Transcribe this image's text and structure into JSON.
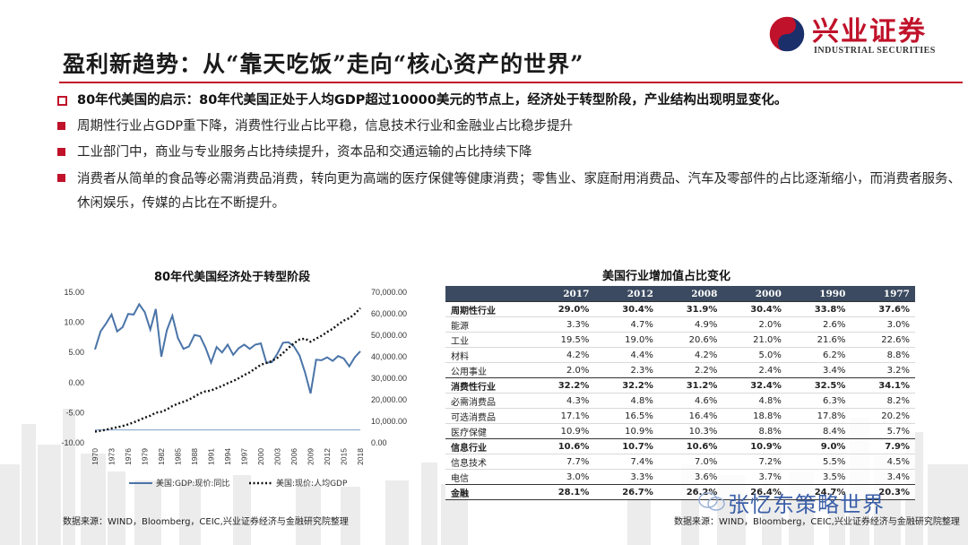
{
  "header": {
    "title": "盈利新趋势：从“靠天吃饭”走向“核心资产的世界”",
    "logo_cn": "兴业证券",
    "logo_en": "INDUSTRIAL SECURITIES"
  },
  "bullets": [
    "80年代美国的启示：80年代美国正处于人均GDP超过10000美元的节点上，经济处于转型阶段，产业结构出现明显变化。",
    "周期性行业占GDP重下降，消费性行业占比平稳，信息技术行业和金融业占比稳步提升",
    "工业部门中，商业与专业服务占比持续提升，资本品和交通运输的占比持续下降",
    "消费者从简单的食品等必需消费品消费，转向更为高端的医疗保健等健康消费；零售业、家庭耐用消费品、汽车及零部件的占比逐渐缩小，而消费者服务、休闲娱乐，传媒的占比在不断提升。"
  ],
  "colors": {
    "accent": "#c0122a",
    "series_gdp": "#4a74a8",
    "series_pc": "#111111",
    "table_header": "#3b4a60"
  },
  "chart_data": [
    {
      "type": "line",
      "title": "80年代美国经济处于转型阶段",
      "x": [
        1970,
        1971,
        1972,
        1973,
        1974,
        1975,
        1976,
        1977,
        1978,
        1979,
        1980,
        1981,
        1982,
        1983,
        1984,
        1985,
        1986,
        1987,
        1988,
        1989,
        1990,
        1991,
        1992,
        1993,
        1994,
        1995,
        1996,
        1997,
        1998,
        1999,
        2000,
        2001,
        2002,
        2003,
        2004,
        2005,
        2006,
        2007,
        2008,
        2009,
        2010,
        2011,
        2012,
        2013,
        2014,
        2015,
        2016,
        2017,
        2018
      ],
      "x_tick_labels": [
        "1970",
        "1973",
        "1976",
        "1979",
        "1982",
        "1985",
        "1988",
        "1991",
        "1994",
        "1997",
        "2000",
        "2003",
        "2006",
        "2009",
        "2012",
        "2015",
        "2018"
      ],
      "y_left_ticks": [
        "15.00",
        "10.00",
        "5.00",
        "0.00",
        "-5.00",
        "-10.00"
      ],
      "y_right_ticks": [
        "70,000.00",
        "60,000.00",
        "50,000.00",
        "40,000.00",
        "30,000.00",
        "20,000.00",
        "10,000.00",
        "0.00"
      ],
      "ylim_left": [
        -10,
        15
      ],
      "ylim_right": [
        0,
        70000
      ],
      "baseline_right": 6000,
      "series": [
        {
          "name": "美国:GDP:现价:同比",
          "axis": "left",
          "values": [
            5.5,
            8.5,
            9.8,
            11.3,
            8.5,
            9.2,
            11.4,
            11.3,
            13.0,
            11.7,
            8.8,
            12.2,
            4.3,
            8.7,
            11.1,
            7.4,
            5.6,
            6.0,
            7.9,
            7.7,
            5.8,
            3.3,
            5.9,
            5.0,
            6.3,
            4.6,
            5.7,
            6.3,
            5.6,
            6.3,
            6.5,
            3.3,
            3.4,
            4.8,
            6.6,
            6.7,
            6.0,
            4.5,
            1.7,
            -1.8,
            3.8,
            3.7,
            4.2,
            3.6,
            4.4,
            4.0,
            2.7,
            4.2,
            5.2
          ]
        },
        {
          "name": "美国:现价:人均GDP",
          "axis": "right",
          "values": [
            5200,
            5600,
            6100,
            6700,
            7200,
            7800,
            8600,
            9500,
            10600,
            11700,
            12600,
            14000,
            14400,
            15500,
            17100,
            18200,
            19100,
            20100,
            21500,
            23000,
            23900,
            24300,
            25400,
            26400,
            27700,
            28700,
            30000,
            31500,
            32800,
            34500,
            36300,
            37100,
            38000,
            39500,
            41700,
            44100,
            46300,
            48000,
            48400,
            47000,
            48400,
            49800,
            51500,
            53000,
            55000,
            56800,
            57900,
            59900,
            62600
          ]
        }
      ]
    },
    {
      "type": "table",
      "title": "美国行业增加值占比变化",
      "columns": [
        "",
        "2017",
        "2012",
        "2008",
        "2000",
        "1990",
        "1977"
      ],
      "rows": [
        {
          "label": "周期性行业",
          "group": true,
          "values": [
            "29.0%",
            "30.4%",
            "31.9%",
            "30.4%",
            "33.8%",
            "37.6%"
          ]
        },
        {
          "label": "能源",
          "group": false,
          "values": [
            "3.3%",
            "4.7%",
            "4.9%",
            "2.0%",
            "2.6%",
            "3.0%"
          ]
        },
        {
          "label": "工业",
          "group": false,
          "values": [
            "19.5%",
            "19.0%",
            "20.6%",
            "21.0%",
            "21.6%",
            "22.6%"
          ]
        },
        {
          "label": "材料",
          "group": false,
          "values": [
            "4.2%",
            "4.4%",
            "4.2%",
            "5.0%",
            "6.2%",
            "8.8%"
          ]
        },
        {
          "label": "公用事业",
          "group": false,
          "values": [
            "2.0%",
            "2.3%",
            "2.2%",
            "2.4%",
            "3.4%",
            "3.2%"
          ]
        },
        {
          "label": "消费性行业",
          "group": true,
          "values": [
            "32.2%",
            "32.2%",
            "31.2%",
            "32.4%",
            "32.5%",
            "34.1%"
          ]
        },
        {
          "label": "必需消费品",
          "group": false,
          "values": [
            "4.3%",
            "4.8%",
            "4.6%",
            "4.8%",
            "6.3%",
            "8.2%"
          ]
        },
        {
          "label": "可选消费品",
          "group": false,
          "values": [
            "17.1%",
            "16.5%",
            "16.4%",
            "18.8%",
            "17.8%",
            "20.2%"
          ]
        },
        {
          "label": "医疗保健",
          "group": false,
          "values": [
            "10.9%",
            "10.9%",
            "10.3%",
            "8.8%",
            "8.4%",
            "5.7%"
          ]
        },
        {
          "label": "信息行业",
          "group": true,
          "values": [
            "10.6%",
            "10.7%",
            "10.6%",
            "10.9%",
            "9.0%",
            "7.9%"
          ]
        },
        {
          "label": "信息技术",
          "group": false,
          "values": [
            "7.7%",
            "7.4%",
            "7.0%",
            "7.2%",
            "5.5%",
            "4.5%"
          ]
        },
        {
          "label": "电信",
          "group": false,
          "values": [
            "3.0%",
            "3.3%",
            "3.6%",
            "3.7%",
            "3.5%",
            "3.4%"
          ]
        },
        {
          "label": "金融",
          "group": true,
          "values": [
            "28.1%",
            "26.7%",
            "26.2%",
            "26.4%",
            "24.7%",
            "20.3%"
          ]
        }
      ]
    }
  ],
  "sources": {
    "left": "数据来源：WIND，Bloomberg，CEIC,兴业证券经济与金融研究院整理",
    "right": "数据来源：WIND，Bloomberg，CEIC,兴业证券经济与金融研究院整理"
  },
  "watermark": "张忆东策略世界"
}
